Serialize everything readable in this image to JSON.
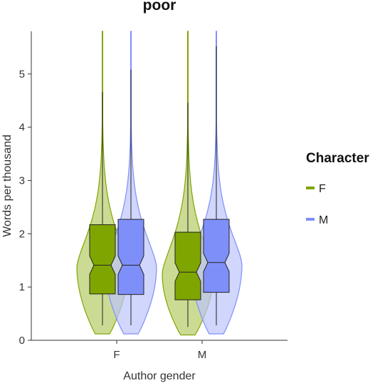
{
  "chart_data": {
    "type": "violin",
    "title": "poor",
    "xlabel": "Author gender",
    "ylabel": "Words per thousand",
    "categories": [
      "F",
      "M"
    ],
    "ylim": [
      0,
      5.8
    ],
    "yticks": [
      "0",
      "1",
      "2",
      "3",
      "4",
      "5"
    ],
    "grid": false,
    "legend": {
      "title": "Character",
      "position": "right"
    },
    "series": [
      {
        "name": "F",
        "color": "#7fa600",
        "fill": "#b6cc66",
        "boxes": [
          {
            "category": "F",
            "min": 0.12,
            "whisker_low": 0.28,
            "q1": 0.87,
            "median": 1.41,
            "q3": 2.17,
            "whisker_high": 4.66,
            "max": 5.8
          },
          {
            "category": "M",
            "min": 0.1,
            "whisker_low": 0.25,
            "q1": 0.76,
            "median": 1.28,
            "q3": 2.03,
            "whisker_high": 4.46,
            "max": 5.8
          }
        ]
      },
      {
        "name": "M",
        "color": "#7f8ffa",
        "fill": "#bcc4fb",
        "boxes": [
          {
            "category": "F",
            "min": 0.12,
            "whisker_low": 0.28,
            "q1": 0.86,
            "median": 1.41,
            "q3": 2.27,
            "whisker_high": 5.08,
            "max": 5.8
          },
          {
            "category": "M",
            "min": 0.12,
            "whisker_low": 0.28,
            "q1": 0.9,
            "median": 1.46,
            "q3": 2.27,
            "whisker_high": 5.52,
            "max": 5.8
          }
        ]
      }
    ]
  }
}
